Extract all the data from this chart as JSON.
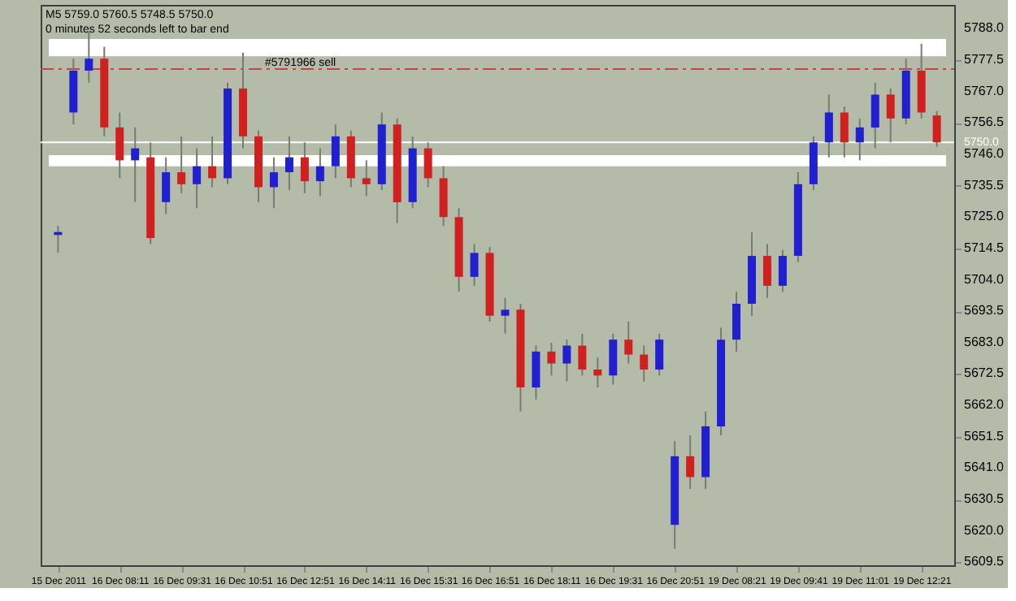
{
  "chart_data": {
    "type": "candlestick",
    "title": "M5  5759.0 5760.5 5748.5 5750.0",
    "subtitle": "0 minutes 52 seconds left to bar end",
    "categories": [
      "15 Dec 2011",
      null,
      null,
      null,
      "16 Dec 08:11",
      null,
      null,
      null,
      "16 Dec 09:31",
      null,
      null,
      null,
      "16 Dec 10:51",
      null,
      null,
      null,
      "16 Dec 12:51",
      null,
      null,
      null,
      "16 Dec 14:11",
      null,
      null,
      null,
      "16 Dec 15:31",
      null,
      null,
      null,
      "16 Dec 16:51",
      null,
      null,
      null,
      "16 Dec 18:11",
      null,
      null,
      null,
      "16 Dec 19:31",
      null,
      null,
      null,
      "16 Dec 20:51",
      null,
      null,
      null,
      "19 Dec 08:21",
      null,
      null,
      null,
      "19 Dec 09:41",
      null,
      null,
      null,
      "19 Dec 11:01",
      null,
      null,
      null,
      "19 Dec 12:21",
      null
    ],
    "ohlc": [
      [
        5719,
        5722,
        5713,
        5720
      ],
      [
        5760,
        5778,
        5756,
        5774
      ],
      [
        5774,
        5787,
        5770,
        5778
      ],
      [
        5778,
        5782,
        5752,
        5755
      ],
      [
        5755,
        5760,
        5738,
        5744
      ],
      [
        5744,
        5755,
        5730,
        5748
      ],
      [
        5745,
        5750,
        5716,
        5718
      ],
      [
        5730,
        5745,
        5726,
        5740
      ],
      [
        5740,
        5752,
        5733,
        5736
      ],
      [
        5736,
        5748,
        5728,
        5742
      ],
      [
        5742,
        5752,
        5735,
        5738
      ],
      [
        5738,
        5770,
        5736,
        5768
      ],
      [
        5768,
        5780,
        5748,
        5752
      ],
      [
        5752,
        5754,
        5730,
        5735
      ],
      [
        5735,
        5745,
        5728,
        5740
      ],
      [
        5740,
        5752,
        5734,
        5745
      ],
      [
        5745,
        5750,
        5733,
        5737
      ],
      [
        5737,
        5748,
        5732,
        5742
      ],
      [
        5742,
        5756,
        5738,
        5752
      ],
      [
        5752,
        5754,
        5735,
        5738
      ],
      [
        5738,
        5744,
        5732,
        5736
      ],
      [
        5736,
        5760,
        5734,
        5756
      ],
      [
        5756,
        5758,
        5723,
        5730
      ],
      [
        5730,
        5752,
        5728,
        5748
      ],
      [
        5748,
        5750,
        5735,
        5738
      ],
      [
        5738,
        5742,
        5722,
        5725
      ],
      [
        5725,
        5728,
        5700,
        5705
      ],
      [
        5705,
        5716,
        5702,
        5713
      ],
      [
        5713,
        5715,
        5690,
        5692
      ],
      [
        5692,
        5698,
        5686,
        5694
      ],
      [
        5694,
        5696,
        5660,
        5668
      ],
      [
        5668,
        5682,
        5664,
        5680
      ],
      [
        5680,
        5683,
        5672,
        5676
      ],
      [
        5676,
        5684,
        5670,
        5682
      ],
      [
        5682,
        5686,
        5672,
        5674
      ],
      [
        5674,
        5678,
        5668,
        5672
      ],
      [
        5672,
        5686,
        5669,
        5684
      ],
      [
        5684,
        5690,
        5676,
        5679
      ],
      [
        5679,
        5682,
        5670,
        5674
      ],
      [
        5674,
        5686,
        5672,
        5684
      ],
      [
        5622,
        5650,
        5614,
        5645
      ],
      [
        5645,
        5652,
        5634,
        5638
      ],
      [
        5638,
        5660,
        5634,
        5655
      ],
      [
        5655,
        5688,
        5652,
        5684
      ],
      [
        5684,
        5700,
        5680,
        5696
      ],
      [
        5696,
        5720,
        5692,
        5712
      ],
      [
        5712,
        5716,
        5698,
        5702
      ],
      [
        5702,
        5714,
        5700,
        5712
      ],
      [
        5712,
        5740,
        5710,
        5736
      ],
      [
        5736,
        5752,
        5734,
        5750
      ],
      [
        5750,
        5766,
        5745,
        5760
      ],
      [
        5760,
        5762,
        5745,
        5750
      ],
      [
        5750,
        5758,
        5744,
        5755
      ],
      [
        5755,
        5770,
        5748,
        5766
      ],
      [
        5766,
        5768,
        5750,
        5758
      ],
      [
        5758,
        5778,
        5756,
        5774
      ],
      [
        5774,
        5783,
        5758,
        5760
      ],
      [
        5759,
        5760.5,
        5748.5,
        5750
      ]
    ],
    "colors": [
      "#2020d0",
      "#2020d0",
      "#2020d0",
      "#d02020",
      "#d02020",
      "#2020d0",
      "#d02020",
      "#2020d0",
      "#d02020",
      "#2020d0",
      "#d02020",
      "#2020d0",
      "#d02020",
      "#d02020",
      "#2020d0",
      "#2020d0",
      "#d02020",
      "#2020d0",
      "#2020d0",
      "#d02020",
      "#d02020",
      "#2020d0",
      "#d02020",
      "#2020d0",
      "#d02020",
      "#d02020",
      "#d02020",
      "#2020d0",
      "#d02020",
      "#2020d0",
      "#d02020",
      "#2020d0",
      "#d02020",
      "#2020d0",
      "#d02020",
      "#d02020",
      "#2020d0",
      "#d02020",
      "#d02020",
      "#2020d0",
      "#2020d0",
      "#d02020",
      "#2020d0",
      "#2020d0",
      "#2020d0",
      "#2020d0",
      "#d02020",
      "#2020d0",
      "#2020d0",
      "#2020d0",
      "#2020d0",
      "#d02020",
      "#2020d0",
      "#2020d0",
      "#d02020",
      "#2020d0",
      "#d02020",
      "#d02020"
    ],
    "ylim": [
      5608.5,
      5796
    ],
    "yticks": [
      {
        "value": 5788,
        "label": "5788.0"
      },
      {
        "value": 5777.5,
        "label": "5777.5"
      },
      {
        "value": 5767,
        "label": "5767.0"
      },
      {
        "value": 5756.5,
        "label": "5756.5"
      },
      {
        "value": 5746,
        "label": "5746.0"
      },
      {
        "value": 5735.5,
        "label": "5735.5"
      },
      {
        "value": 5725,
        "label": "5725.0"
      },
      {
        "value": 5714.5,
        "label": "5714.5"
      },
      {
        "value": 5704,
        "label": "5704.0"
      },
      {
        "value": 5693.5,
        "label": "5693.5"
      },
      {
        "value": 5683,
        "label": "5683.0"
      },
      {
        "value": 5672.5,
        "label": "5672.5"
      },
      {
        "value": 5662,
        "label": "5662.0"
      },
      {
        "value": 5651.5,
        "label": "5651.5"
      },
      {
        "value": 5641,
        "label": "5641.0"
      },
      {
        "value": 5630.5,
        "label": "5630.5"
      },
      {
        "value": 5620,
        "label": "5620.0"
      },
      {
        "value": 5609.5,
        "label": "5609.5"
      }
    ],
    "ref_lines": [
      {
        "axis": "y",
        "value": 5750,
        "color": "#ffffff",
        "line_style": "solid"
      },
      {
        "axis": "y",
        "value": 5774.5,
        "label": "#5791966 sell",
        "color": "#d04040",
        "line_style": "dashed"
      }
    ],
    "bands": [
      {
        "axis": "y",
        "from": 5778.8,
        "to": 5784.6,
        "color": "#ffffff"
      },
      {
        "axis": "y",
        "from": 5742,
        "to": 5745.7,
        "color": "#ffffff"
      }
    ],
    "annotations": [
      "5750.0"
    ],
    "grid": false
  }
}
